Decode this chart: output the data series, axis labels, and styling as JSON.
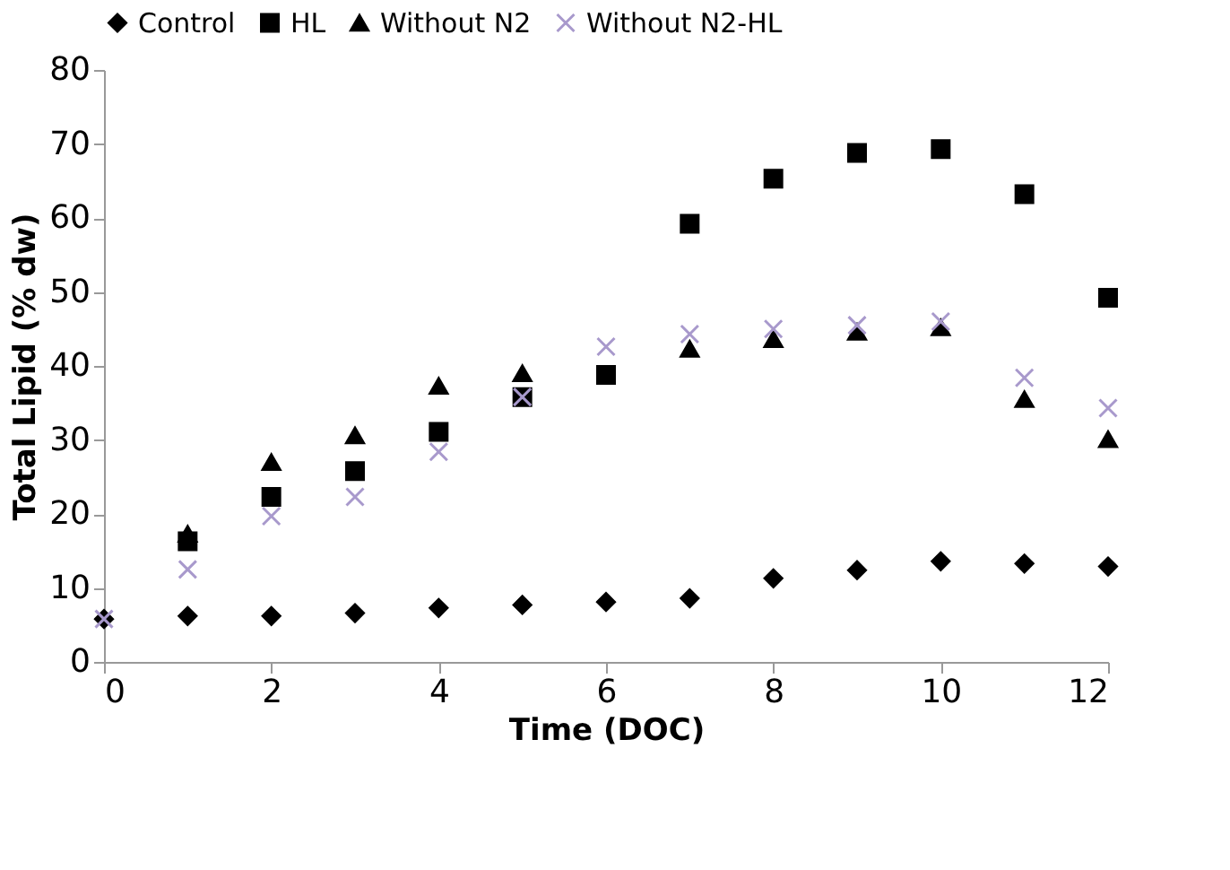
{
  "chart_data": {
    "type": "scatter",
    "xlabel": "Time (DOC)",
    "ylabel": "Total Lipid (% dw)",
    "x": [
      0,
      1,
      2,
      3,
      4,
      5,
      6,
      7,
      8,
      9,
      10,
      11,
      12
    ],
    "series": [
      {
        "name": "Control",
        "color": "#000000",
        "marker": "diamond",
        "values": [
          5.8,
          6.2,
          6.2,
          6.6,
          7.3,
          7.7,
          8.1,
          8.6,
          11.3,
          12.4,
          13.6,
          13.3,
          12.9
        ]
      },
      {
        "name": "HL",
        "color": "#000000",
        "marker": "square",
        "values": [
          null,
          16.3,
          22.3,
          25.8,
          31.1,
          35.8,
          38.8,
          59.2,
          65.3,
          68.8,
          69.3,
          63.2,
          49.2
        ]
      },
      {
        "name": "Without N2",
        "color": "#000000",
        "marker": "triangle",
        "values": [
          null,
          17.3,
          27,
          30.6,
          37.3,
          39,
          null,
          42.3,
          43.6,
          44.6,
          45.2,
          35.5,
          30.1
        ]
      },
      {
        "name": "Without N2-HL",
        "color": "#a899cc",
        "marker": "cross",
        "values": [
          5.8,
          12.5,
          19.7,
          22.3,
          28.4,
          35.8,
          42.6,
          44.3,
          45,
          45.5,
          46,
          38.4,
          34.3
        ]
      }
    ],
    "xlim": [
      0,
      12
    ],
    "xticks": [
      0,
      2,
      4,
      6,
      8,
      10,
      12
    ],
    "ylim": [
      0,
      80
    ],
    "yticks": [
      0,
      10,
      20,
      30,
      40,
      50,
      60,
      70,
      80
    ],
    "grid": false,
    "legend": "top"
  }
}
